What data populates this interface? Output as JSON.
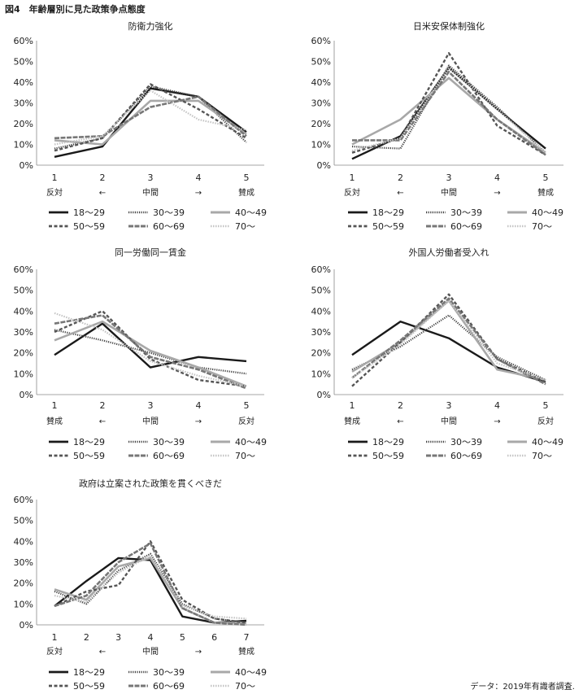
{
  "figure_title": "図4　年齢層別に見た政策争点態度",
  "footer_note": "データ：2019年有識者調査.",
  "legend_style": {
    "18〜29": {
      "color": "#1a1a1a",
      "dash": "none",
      "width": 2.4
    },
    "30〜39": {
      "color": "#444444",
      "dash": "1.2,1.4",
      "width": 2.2
    },
    "40〜49": {
      "color": "#a8a8a8",
      "dash": "none",
      "width": 2.6
    },
    "50〜59": {
      "color": "#555555",
      "dash": "4,2.5",
      "width": 2.4
    },
    "60〜69": {
      "color": "#777777",
      "dash": "6,1.5",
      "width": 2.6
    },
    "70〜": {
      "color": "#c4c4c4",
      "dash": "1.5,1.5",
      "width": 2.2
    }
  },
  "chart_data": [
    {
      "type": "line",
      "title": "防衛力強化",
      "x": [
        1,
        2,
        3,
        4,
        5
      ],
      "anchor_labels": [
        "反対",
        "←",
        "中間",
        "→",
        "賛成"
      ],
      "anchor_positions": [
        1,
        2,
        3,
        4,
        5
      ],
      "ylim": [
        0,
        60
      ],
      "yticks": [
        "0%",
        "10%",
        "20%",
        "30%",
        "40%",
        "50%",
        "60%"
      ],
      "series": [
        {
          "name": "18〜29",
          "values": [
            4,
            9,
            37,
            33,
            16
          ]
        },
        {
          "name": "30〜39",
          "values": [
            8,
            13,
            38,
            33,
            11
          ]
        },
        {
          "name": "40〜49",
          "values": [
            12,
            10,
            31,
            31,
            15
          ]
        },
        {
          "name": "50〜59",
          "values": [
            7,
            13,
            39,
            27,
            13
          ]
        },
        {
          "name": "60〜69",
          "values": [
            13,
            14,
            28,
            33,
            14
          ]
        },
        {
          "name": "70〜",
          "values": [
            10,
            14,
            36,
            22,
            17
          ]
        }
      ]
    },
    {
      "type": "line",
      "title": "日米安保体制強化",
      "x": [
        1,
        2,
        3,
        4,
        5
      ],
      "anchor_labels": [
        "反対",
        "←",
        "中間",
        "→",
        "賛成"
      ],
      "anchor_positions": [
        1,
        2,
        3,
        4,
        5
      ],
      "ylim": [
        0,
        60
      ],
      "yticks": [
        "0%",
        "10%",
        "20%",
        "30%",
        "40%",
        "50%",
        "60%"
      ],
      "series": [
        {
          "name": "18〜29",
          "values": [
            3,
            14,
            47,
            27,
            8
          ]
        },
        {
          "name": "30〜39",
          "values": [
            9,
            8,
            48,
            28,
            6
          ]
        },
        {
          "name": "40〜49",
          "values": [
            10,
            22,
            42,
            22,
            6
          ]
        },
        {
          "name": "50〜59",
          "values": [
            6,
            13,
            54,
            19,
            5
          ]
        },
        {
          "name": "60〜69",
          "values": [
            12,
            12,
            45,
            22,
            5
          ]
        },
        {
          "name": "70〜",
          "values": [
            7,
            13,
            47,
            27,
            6
          ]
        }
      ]
    },
    {
      "type": "line",
      "title": "同一労働同一賃金",
      "x": [
        1,
        2,
        3,
        4,
        5
      ],
      "anchor_labels": [
        "賛成",
        "←",
        "中間",
        "→",
        "反対"
      ],
      "anchor_positions": [
        1,
        2,
        3,
        4,
        5
      ],
      "ylim": [
        0,
        60
      ],
      "yticks": [
        "0%",
        "10%",
        "20%",
        "30%",
        "40%",
        "50%",
        "60%"
      ],
      "series": [
        {
          "name": "18〜29",
          "values": [
            19,
            34,
            13,
            18,
            16
          ]
        },
        {
          "name": "30〜39",
          "values": [
            31,
            26,
            20,
            13,
            10
          ]
        },
        {
          "name": "40〜49",
          "values": [
            26,
            35,
            21,
            13,
            4
          ]
        },
        {
          "name": "50〜59",
          "values": [
            30,
            40,
            17,
            7,
            4
          ]
        },
        {
          "name": "60〜69",
          "values": [
            34,
            38,
            18,
            12,
            3
          ]
        },
        {
          "name": "70〜",
          "values": [
            39,
            31,
            16,
            9,
            4
          ]
        }
      ]
    },
    {
      "type": "line",
      "title": "外国人労働者受入れ",
      "x": [
        1,
        2,
        3,
        4,
        5
      ],
      "anchor_labels": [
        "賛成",
        "←",
        "中間",
        "→",
        "反対"
      ],
      "anchor_positions": [
        1,
        2,
        3,
        4,
        5
      ],
      "ylim": [
        0,
        60
      ],
      "yticks": [
        "0%",
        "10%",
        "20%",
        "30%",
        "40%",
        "50%",
        "60%"
      ],
      "series": [
        {
          "name": "18〜29",
          "values": [
            19,
            35,
            27,
            13,
            6
          ]
        },
        {
          "name": "30〜39",
          "values": [
            12,
            23,
            38,
            18,
            7
          ]
        },
        {
          "name": "40〜49",
          "values": [
            11,
            25,
            45,
            12,
            7
          ]
        },
        {
          "name": "50〜59",
          "values": [
            4,
            25,
            48,
            17,
            6
          ]
        },
        {
          "name": "60〜69",
          "values": [
            8,
            26,
            46,
            17,
            5
          ]
        },
        {
          "name": "70〜",
          "values": [
            8,
            24,
            45,
            15,
            7
          ]
        }
      ]
    },
    {
      "type": "line",
      "title": "政府は立案された政策を貫くべきだ",
      "x": [
        1,
        2,
        3,
        4,
        5,
        6,
        7
      ],
      "anchor_labels": [
        "反対",
        "←",
        "中間",
        "→",
        "賛成"
      ],
      "anchor_positions": [
        1,
        2.5,
        4,
        5.5,
        7
      ],
      "ylim": [
        0,
        60
      ],
      "yticks": [
        "0%",
        "10%",
        "20%",
        "30%",
        "40%",
        "50%",
        "60%"
      ],
      "series": [
        {
          "name": "18〜29",
          "values": [
            9,
            21,
            32,
            31,
            4,
            1,
            2
          ]
        },
        {
          "name": "30〜39",
          "values": [
            16,
            10,
            26,
            34,
            10,
            3,
            1
          ]
        },
        {
          "name": "40〜49",
          "values": [
            17,
            12,
            28,
            32,
            8,
            1,
            1
          ]
        },
        {
          "name": "50〜59",
          "values": [
            9,
            16,
            19,
            40,
            12,
            3,
            1
          ]
        },
        {
          "name": "60〜69",
          "values": [
            9,
            14,
            30,
            39,
            8,
            1,
            0
          ]
        },
        {
          "name": "70〜",
          "values": [
            14,
            11,
            25,
            33,
            9,
            4,
            3
          ]
        }
      ]
    }
  ]
}
